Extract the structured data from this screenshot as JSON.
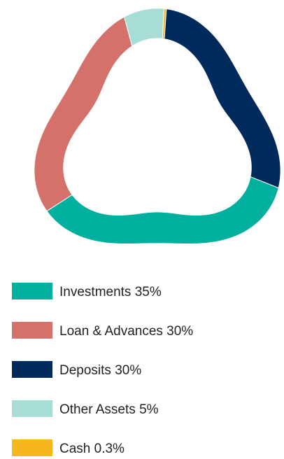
{
  "chart_data": {
    "type": "donut",
    "categories": [
      "Investments",
      "Loan & Advances",
      "Deposits",
      "Other Assets",
      "Cash"
    ],
    "values": [
      35,
      30,
      30,
      5,
      0.3
    ],
    "value_labels": [
      "35%",
      "30%",
      "30%",
      "5%",
      "0.3%"
    ],
    "colors": [
      "#00b09f",
      "#d4716a",
      "#002a5c",
      "#a8ddd6",
      "#f6b71c"
    ],
    "legend": "bottom"
  }
}
